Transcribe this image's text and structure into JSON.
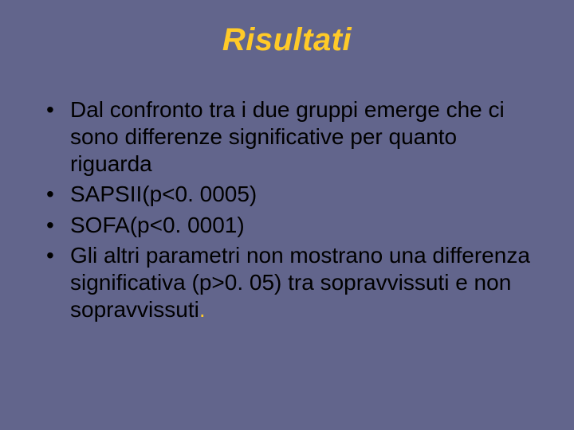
{
  "colors": {
    "background": "#62658c",
    "title": "#ffca28",
    "body_text": "#000000",
    "accent": "#ffca28"
  },
  "typography": {
    "title_fontsize": 40,
    "title_style": "italic bold",
    "body_fontsize": 28,
    "font_family": "Arial"
  },
  "title": "Risultati",
  "bullets": [
    "Dal confronto tra i due gruppi emerge che ci sono differenze significative per quanto riguarda",
    "SAPSII(p<0. 0005)",
    "SOFA(p<0. 0001)",
    "Gli altri parametri non mostrano una differenza significativa (p>0. 05) tra sopravvissuti e non sopravvissuti"
  ],
  "trailing_accent_period_on_last": "."
}
